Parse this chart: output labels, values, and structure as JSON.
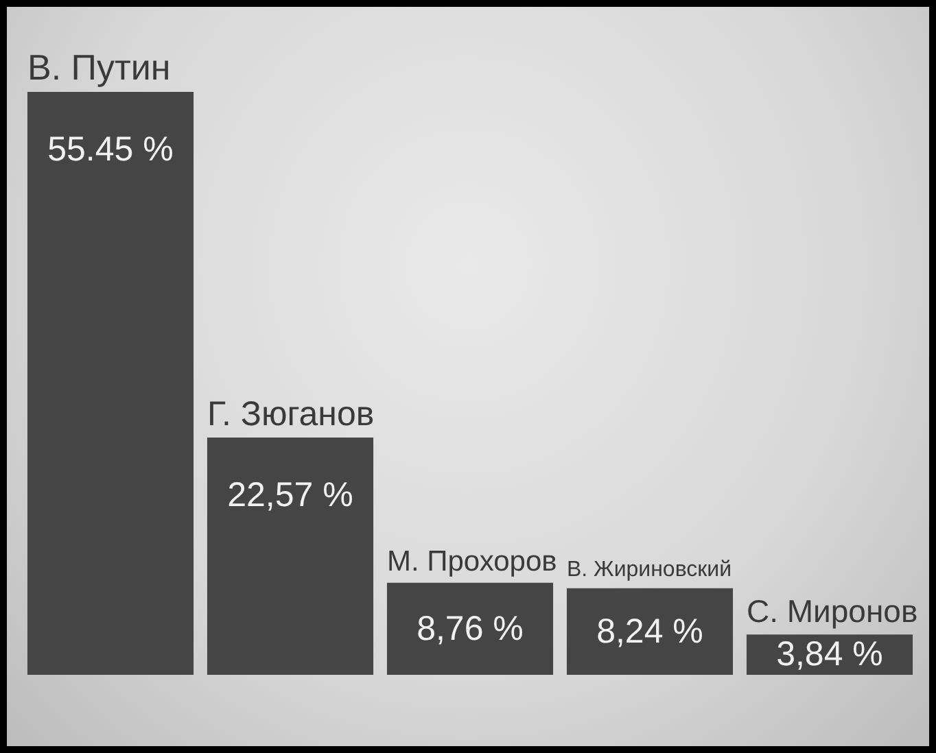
{
  "chart_data": {
    "type": "bar",
    "categories": [
      "В. Путин",
      "Г. Зюганов",
      "М. Прохоров",
      "В. Жириновский",
      "С. Миронов"
    ],
    "values": [
      55.45,
      22.57,
      8.76,
      8.24,
      3.84
    ],
    "color": "#454545",
    "value_labels": [
      "55.45 %",
      "22,57 %",
      "8,76 %",
      "8,24 %",
      "3,84 %"
    ]
  }
}
